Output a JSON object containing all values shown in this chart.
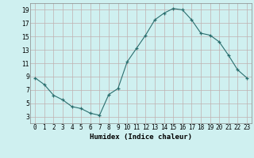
{
  "x": [
    0,
    1,
    2,
    3,
    4,
    5,
    6,
    7,
    8,
    9,
    10,
    11,
    12,
    13,
    14,
    15,
    16,
    17,
    18,
    19,
    20,
    21,
    22,
    23
  ],
  "y": [
    8.8,
    7.8,
    6.2,
    5.5,
    4.5,
    4.2,
    3.5,
    3.2,
    6.3,
    7.2,
    11.2,
    13.2,
    15.2,
    17.5,
    18.5,
    19.2,
    19.0,
    17.5,
    15.5,
    15.2,
    14.2,
    12.2,
    10.0,
    8.8
  ],
  "xlabel": "Humidex (Indice chaleur)",
  "bg_color": "#cff0f0",
  "grid_color": "#c0b0b0",
  "line_color": "#2a6e6e",
  "marker_color": "#2a6e6e",
  "xlim": [
    -0.5,
    23.5
  ],
  "ylim": [
    2.0,
    20.0
  ],
  "yticks": [
    3,
    5,
    7,
    9,
    11,
    13,
    15,
    17,
    19
  ],
  "xtick_labels": [
    "0",
    "1",
    "2",
    "3",
    "4",
    "5",
    "6",
    "7",
    "8",
    "9",
    "10",
    "11",
    "12",
    "13",
    "14",
    "15",
    "16",
    "17",
    "18",
    "19",
    "20",
    "21",
    "22",
    "23"
  ]
}
